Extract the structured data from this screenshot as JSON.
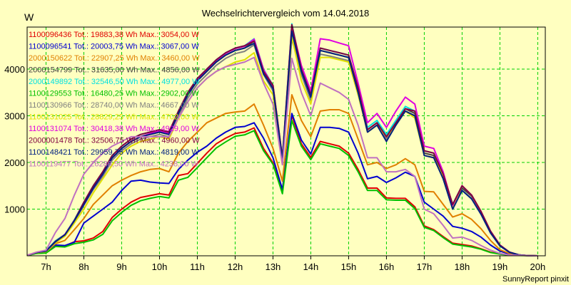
{
  "chart_data": {
    "type": "line",
    "title": "Wechselrichtervergleich vom 14.04.2018",
    "ylabel": "W",
    "xlabel": "",
    "credit": "SunnyReport pinxit",
    "ylim": [
      0,
      4900
    ],
    "yticks": [
      1000,
      2000,
      3000,
      4000
    ],
    "xlim": [
      6.5,
      20.2
    ],
    "xticks": [
      {
        "v": 7,
        "label": "7h"
      },
      {
        "v": 8,
        "label": "8h"
      },
      {
        "v": 9,
        "label": "9h"
      },
      {
        "v": 10,
        "label": "10h"
      },
      {
        "v": 11,
        "label": "11h"
      },
      {
        "v": 12,
        "label": "12h"
      },
      {
        "v": 13,
        "label": "13h"
      },
      {
        "v": 14,
        "label": "14h"
      },
      {
        "v": 15,
        "label": "15h"
      },
      {
        "v": 16,
        "label": "16h"
      },
      {
        "v": 17,
        "label": "17h"
      },
      {
        "v": 18,
        "label": "18h"
      },
      {
        "v": 19,
        "label": "19h"
      },
      {
        "v": 20,
        "label": "20h"
      }
    ],
    "grid": true,
    "legend_position": "top-left",
    "x": [
      6.5,
      6.75,
      7,
      7.25,
      7.5,
      7.75,
      8,
      8.25,
      8.5,
      8.75,
      9,
      9.25,
      9.5,
      9.75,
      10,
      10.25,
      10.5,
      10.75,
      11,
      11.25,
      11.5,
      11.75,
      12,
      12.25,
      12.5,
      12.75,
      13,
      13.25,
      13.5,
      13.75,
      14,
      14.25,
      14.5,
      14.75,
      15,
      15.25,
      15.5,
      15.75,
      16,
      16.25,
      16.5,
      16.75,
      17,
      17.25,
      17.5,
      17.75,
      18,
      18.25,
      18.5,
      18.75,
      19,
      19.25,
      19.5,
      19.75,
      20
    ],
    "series": [
      {
        "name": "1100096436 Tot.: 19883,38 Wh Max.: 3054,00 W",
        "color": "#e00000",
        "values": [
          10,
          60,
          70,
          220,
          210,
          300,
          320,
          380,
          520,
          820,
          1000,
          1150,
          1250,
          1290,
          1330,
          1300,
          1720,
          1760,
          1980,
          2200,
          2400,
          2520,
          2620,
          2650,
          2740,
          2300,
          1990,
          1360,
          3010,
          2400,
          2110,
          2450,
          2400,
          2350,
          2200,
          1850,
          1450,
          1450,
          1240,
          1230,
          1230,
          1050,
          640,
          560,
          410,
          270,
          240,
          210,
          150,
          80,
          40,
          20,
          10,
          5,
          0
        ]
      },
      {
        "name": "1100096541 Tot.: 20003,75 Wh Max.: 3067,00 W",
        "color": "#0000d0",
        "values": [
          10,
          65,
          80,
          230,
          220,
          290,
          700,
          850,
          1000,
          1150,
          1400,
          1600,
          1620,
          1580,
          1560,
          1550,
          1850,
          2050,
          2220,
          2350,
          2520,
          2650,
          2750,
          2770,
          2850,
          2520,
          2100,
          1420,
          3050,
          2480,
          2180,
          2750,
          2750,
          2730,
          2650,
          2200,
          1650,
          1700,
          1570,
          1670,
          1790,
          1700,
          1150,
          1000,
          850,
          630,
          590,
          520,
          400,
          230,
          100,
          40,
          15,
          5,
          0
        ]
      },
      {
        "name": "2000150622 Tot.: 22907,25 Wh Max.: 3460,00 W",
        "color": "#e08000",
        "values": [
          10,
          65,
          80,
          260,
          330,
          560,
          800,
          1100,
          1300,
          1500,
          1620,
          1720,
          1800,
          1850,
          1870,
          1800,
          2200,
          2450,
          2650,
          2850,
          2950,
          3050,
          3080,
          3100,
          3250,
          2800,
          2300,
          1600,
          3450,
          2900,
          2550,
          3100,
          3130,
          3130,
          3050,
          2500,
          1950,
          2000,
          1870,
          1950,
          2080,
          1950,
          1380,
          1370,
          1100,
          830,
          900,
          780,
          580,
          330,
          130,
          50,
          15,
          5,
          0
        ]
      },
      {
        "name": "2000154799 Tot.: 31635,00 Wh Max.: 4856,00 W",
        "color": "#404040",
        "values": [
          10,
          70,
          100,
          300,
          450,
          750,
          1100,
          1450,
          1750,
          2100,
          2300,
          2450,
          2550,
          2600,
          2650,
          2600,
          3050,
          3450,
          3750,
          3950,
          4150,
          4300,
          4400,
          4450,
          4600,
          3950,
          3600,
          2050,
          4850,
          3950,
          3400,
          4400,
          4350,
          4300,
          4250,
          3550,
          2700,
          2850,
          2550,
          2850,
          3150,
          3050,
          2200,
          2150,
          1700,
          1050,
          1450,
          1280,
          930,
          520,
          220,
          80,
          20,
          5,
          0
        ]
      },
      {
        "name": "2000149892 Tot.: 32546,50 Wh Max.: 4977,00 W",
        "color": "#00e0e0",
        "values": [
          10,
          70,
          110,
          320,
          460,
          770,
          1150,
          1500,
          1800,
          2150,
          2350,
          2500,
          2600,
          2650,
          2700,
          2650,
          3100,
          3500,
          3800,
          4000,
          4200,
          4350,
          4450,
          4500,
          4650,
          4000,
          3650,
          2100,
          4970,
          4000,
          3450,
          4450,
          4400,
          4350,
          4300,
          3600,
          2750,
          2900,
          2600,
          2900,
          3200,
          3100,
          2250,
          2200,
          1750,
          1100,
          1500,
          1300,
          950,
          530,
          230,
          80,
          20,
          5,
          0
        ]
      },
      {
        "name": "1100129553 Tot.: 16480,25 Wh Max.: 2902,00 W",
        "color": "#00c000",
        "values": [
          5,
          50,
          60,
          200,
          190,
          260,
          290,
          340,
          460,
          750,
          930,
          1080,
          1180,
          1230,
          1270,
          1240,
          1620,
          1680,
          1890,
          2100,
          2310,
          2440,
          2560,
          2590,
          2680,
          2250,
          1960,
          1330,
          2900,
          2350,
          2060,
          2400,
          2350,
          2300,
          2150,
          1800,
          1400,
          1400,
          1200,
          1190,
          1190,
          1010,
          610,
          540,
          390,
          250,
          220,
          190,
          140,
          70,
          35,
          15,
          8,
          3,
          0
        ]
      },
      {
        "name": "1100130966 Tot.: 28740,00 Wh Max.: 4667,00 W",
        "color": "#808080",
        "values": [
          10,
          70,
          95,
          290,
          440,
          730,
          1080,
          1420,
          1700,
          2050,
          2250,
          2400,
          2500,
          2550,
          2600,
          2550,
          3000,
          3380,
          3680,
          3880,
          4080,
          4230,
          4330,
          4380,
          4520,
          3880,
          3530,
          2000,
          4660,
          3880,
          3330,
          4320,
          4280,
          4230,
          4180,
          3480,
          2650,
          2800,
          2500,
          2800,
          3100,
          3000,
          2150,
          2100,
          1650,
          1020,
          1400,
          1230,
          900,
          500,
          210,
          75,
          20,
          5,
          0
        ]
      },
      {
        "name": "1100131025 Tot.: 28829,25 Wh Max.: 4702,00 W",
        "color": "#e0e000",
        "values": [
          10,
          65,
          90,
          280,
          420,
          700,
          1000,
          1350,
          1650,
          1950,
          2200,
          2350,
          2450,
          2500,
          2550,
          2500,
          2950,
          3300,
          3600,
          3800,
          3950,
          4050,
          4150,
          4200,
          4350,
          3750,
          3450,
          1950,
          4700,
          3750,
          3250,
          4250,
          4250,
          4200,
          4150,
          3450,
          2650,
          2800,
          2550,
          2800,
          3100,
          2950,
          2150,
          2100,
          1700,
          1050,
          1500,
          1300,
          950,
          520,
          220,
          80,
          20,
          5,
          0
        ]
      },
      {
        "name": "1100131074 Tot.: 30418,38 Wh Max.: 4929,00 W",
        "color": "#e000e0",
        "values": [
          10,
          70,
          100,
          300,
          460,
          760,
          1100,
          1450,
          1750,
          2100,
          2300,
          2450,
          2550,
          2620,
          2680,
          2620,
          3080,
          3480,
          3780,
          3990,
          4190,
          4340,
          4440,
          4490,
          4640,
          3990,
          3640,
          2080,
          4920,
          4080,
          3530,
          4650,
          4620,
          4560,
          4500,
          3700,
          2850,
          3050,
          2750,
          3100,
          3400,
          3250,
          2350,
          2300,
          1800,
          1080,
          1500,
          1300,
          950,
          530,
          230,
          80,
          20,
          5,
          0
        ]
      },
      {
        "name": "2000001478 Tot.: 32506,75 Wh Max.: 4960,00 W",
        "color": "#800040",
        "values": [
          10,
          70,
          100,
          310,
          450,
          760,
          1150,
          1500,
          1800,
          2150,
          2350,
          2500,
          2600,
          2650,
          2700,
          2650,
          3100,
          3500,
          3800,
          4000,
          4200,
          4350,
          4450,
          4500,
          4600,
          3950,
          3650,
          2100,
          4950,
          4000,
          3450,
          4450,
          4400,
          4350,
          4300,
          3600,
          2700,
          2850,
          2550,
          2850,
          3150,
          3100,
          2250,
          2200,
          1750,
          1100,
          1500,
          1300,
          950,
          530,
          230,
          80,
          20,
          5,
          0
        ]
      },
      {
        "name": "1100148421 Tot.: 29959,75 Wh Max.: 4819,00 W",
        "color": "#002080",
        "values": [
          10,
          70,
          100,
          300,
          450,
          750,
          1100,
          1450,
          1750,
          2100,
          2300,
          2450,
          2550,
          2600,
          2650,
          2600,
          3050,
          3450,
          3750,
          3950,
          4150,
          4300,
          4400,
          4450,
          4550,
          3900,
          3580,
          2050,
          4810,
          3950,
          3400,
          4400,
          4350,
          4300,
          4250,
          3500,
          2650,
          2800,
          2450,
          2800,
          3100,
          3000,
          2150,
          2100,
          1650,
          1000,
          1400,
          1220,
          890,
          490,
          210,
          75,
          20,
          5,
          0
        ]
      },
      {
        "name": "1100119477 Tot.: 26286,50 Wh Max.: 4238,00 W",
        "color": "#c070c0",
        "values": [
          10,
          80,
          120,
          500,
          800,
          1300,
          1750,
          2000,
          2200,
          2350,
          2450,
          2550,
          2550,
          2550,
          2550,
          2550,
          2950,
          3300,
          3600,
          3800,
          3950,
          4050,
          4100,
          4150,
          4250,
          3700,
          3250,
          1950,
          4230,
          3500,
          3000,
          3700,
          3600,
          3500,
          3350,
          2800,
          2100,
          2100,
          1800,
          1800,
          1850,
          1700,
          1000,
          900,
          650,
          380,
          400,
          330,
          220,
          120,
          50,
          20,
          10,
          3,
          0
        ]
      }
    ]
  }
}
